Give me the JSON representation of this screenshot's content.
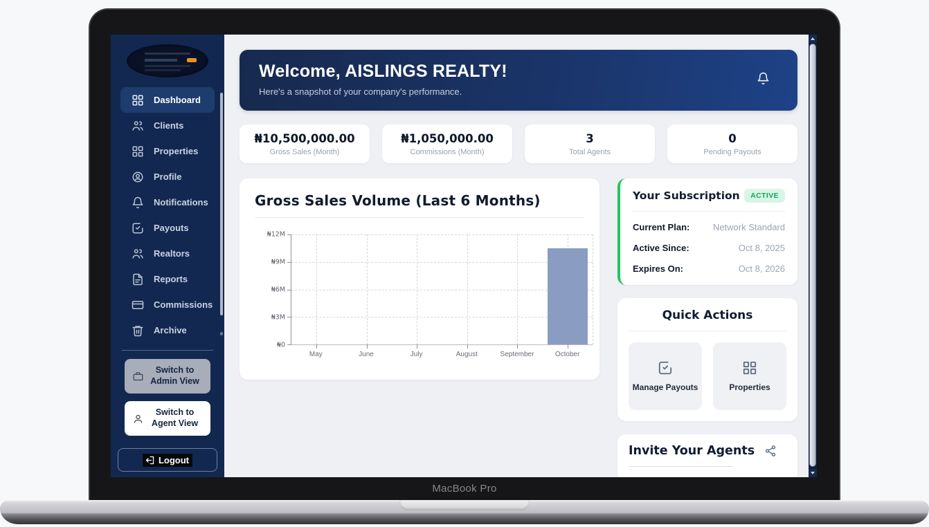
{
  "device": {
    "label": "MacBook Pro"
  },
  "sidebar": {
    "nav": [
      {
        "label": "Dashboard",
        "icon": "grid",
        "active": true
      },
      {
        "label": "Clients",
        "icon": "users",
        "active": false
      },
      {
        "label": "Properties",
        "icon": "grid",
        "active": false
      },
      {
        "label": "Profile",
        "icon": "user-circle",
        "active": false
      },
      {
        "label": "Notifications",
        "icon": "bell",
        "active": false
      },
      {
        "label": "Payouts",
        "icon": "check-square",
        "active": false
      },
      {
        "label": "Realtors",
        "icon": "users",
        "active": false
      },
      {
        "label": "Reports",
        "icon": "file-text",
        "active": false
      },
      {
        "label": "Commissions",
        "icon": "credit-card",
        "active": false
      },
      {
        "label": "Archive",
        "icon": "trash",
        "active": false
      }
    ],
    "switch_admin": "Switch to Admin View",
    "switch_agent": "Switch to Agent View",
    "logout": "Logout"
  },
  "banner": {
    "title": "Welcome, AISLINGS REALTY!",
    "subtitle": "Here's a snapshot of your company's performance."
  },
  "stats": [
    {
      "value": "₦10,500,000.00",
      "label": "Gross Sales (Month)"
    },
    {
      "value": "₦1,050,000.00",
      "label": "Commissions (Month)"
    },
    {
      "value": "3",
      "label": "Total Agents"
    },
    {
      "value": "0",
      "label": "Pending Payouts"
    }
  ],
  "chart_data": {
    "type": "bar",
    "title": "Gross Sales Volume (Last 6 Months)",
    "categories": [
      "May",
      "June",
      "July",
      "August",
      "September",
      "October"
    ],
    "values": [
      0,
      0,
      0,
      0,
      0,
      10500000
    ],
    "ytick_labels": [
      "₦12M",
      "₦9M",
      "₦6M",
      "₦3M",
      "₦0"
    ],
    "ylim": [
      0,
      12000000
    ],
    "xlabel": "",
    "ylabel": "",
    "grid": true,
    "legend": false,
    "bar_color": "#8b9cc3"
  },
  "subscription": {
    "title": "Your Subscription",
    "badge": "ACTIVE",
    "rows": [
      {
        "label": "Current Plan:",
        "value": "Network Standard"
      },
      {
        "label": "Active Since:",
        "value": "Oct 8, 2025"
      },
      {
        "label": "Expires On:",
        "value": "Oct 8, 2026"
      }
    ]
  },
  "quick_actions": {
    "title": "Quick Actions",
    "items": [
      {
        "label": "Manage Payouts",
        "icon": "check-square"
      },
      {
        "label": "Properties",
        "icon": "grid"
      }
    ]
  },
  "invite": {
    "title": "Invite Your Agents",
    "icon": "share"
  },
  "colors": {
    "sidebar_bg": "#122850",
    "active_item_bg": "#1e3c6d",
    "banner_gradient_start": "#17294e",
    "banner_gradient_end": "#1e4287",
    "badge_text": "#17a35b",
    "badge_bg": "#d8f6e5",
    "subscription_border": "#22c55e",
    "bar": "#8b9cc3"
  }
}
